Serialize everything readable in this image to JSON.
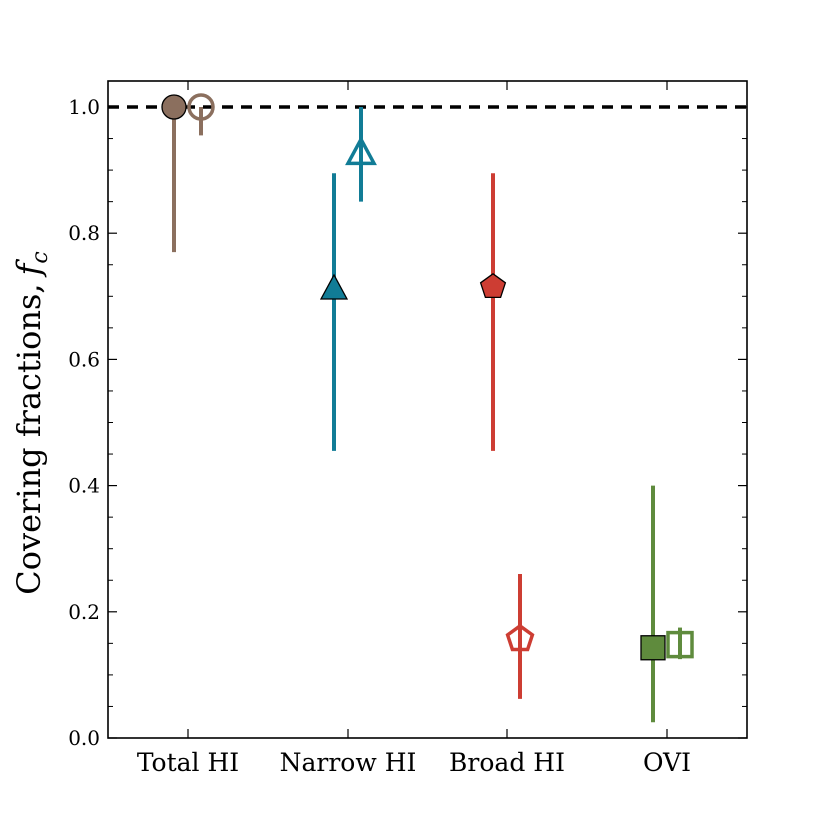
{
  "chart_data": {
    "type": "scatter",
    "title": "",
    "xlabel": "",
    "ylabel": "Covering fractions,",
    "ylabel_symbol": "f",
    "ylabel_subscript": "c",
    "ylim": [
      0.0,
      1.05
    ],
    "yticks": [
      "0.0",
      "0.2",
      "0.4",
      "0.6",
      "0.8",
      "1.0"
    ],
    "categories": [
      "Total HI",
      "Narrow HI",
      "Broad HI",
      "OVI"
    ],
    "reference_line": {
      "value": 1.0,
      "style": "dashed",
      "color": "#000000"
    },
    "series": [
      {
        "name": "filled",
        "fill": "filled",
        "points": [
          {
            "category": "Total HI",
            "marker": "circle",
            "color": "#8b6f5e",
            "y": 1.0,
            "low": 0.77,
            "high": 1.0
          },
          {
            "category": "Narrow HI",
            "marker": "triangle",
            "color": "#117c96",
            "y": 0.71,
            "low": 0.455,
            "high": 0.895
          },
          {
            "category": "Broad HI",
            "marker": "pentagon",
            "color": "#cd3d33",
            "y": 0.715,
            "low": 0.455,
            "high": 0.895
          },
          {
            "category": "OVI",
            "marker": "square",
            "color": "#5f8b3d",
            "y": 0.143,
            "low": 0.025,
            "high": 0.4
          }
        ]
      },
      {
        "name": "open",
        "fill": "open",
        "points": [
          {
            "category": "Total HI",
            "marker": "circle",
            "color": "#8b6f5e",
            "y": 1.0,
            "low": 0.955,
            "high": 1.0
          },
          {
            "category": "Narrow HI",
            "marker": "triangle",
            "color": "#117c96",
            "y": 0.925,
            "low": 0.85,
            "high": 1.0
          },
          {
            "category": "Broad HI",
            "marker": "pentagon",
            "color": "#cd3d33",
            "y": 0.157,
            "low": 0.062,
            "high": 0.26
          },
          {
            "category": "OVI",
            "marker": "square",
            "color": "#5f8b3d",
            "y": 0.148,
            "low": 0.125,
            "high": 0.175
          }
        ]
      }
    ]
  }
}
